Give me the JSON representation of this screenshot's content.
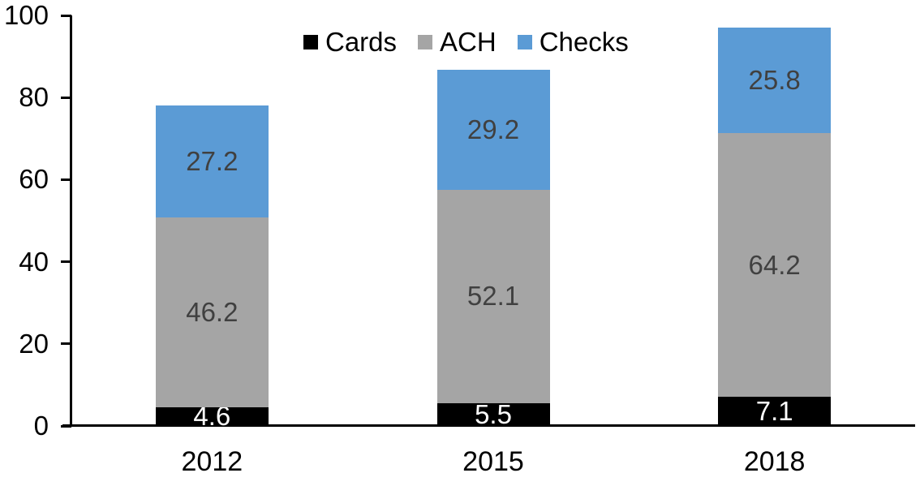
{
  "chart_data": {
    "type": "bar",
    "stacked": true,
    "title": "",
    "xlabel": "",
    "ylabel": "",
    "categories": [
      "2012",
      "2015",
      "2018"
    ],
    "series": [
      {
        "name": "Cards",
        "color": "#000000",
        "label_color": "#FFFFFF",
        "values": [
          4.6,
          5.5,
          7.1
        ]
      },
      {
        "name": "ACH",
        "color": "#A5A5A5",
        "label_color": "#404040",
        "values": [
          46.2,
          52.1,
          64.2
        ]
      },
      {
        "name": "Checks",
        "color": "#5B9BD5",
        "label_color": "#404040",
        "values": [
          27.2,
          29.2,
          25.8
        ]
      }
    ],
    "totals": [
      78.0,
      86.8,
      97.1
    ],
    "ylim": [
      0,
      100
    ],
    "yticks": [
      0,
      20,
      40,
      60,
      80,
      100
    ],
    "grid": false,
    "legend_position": "top-center",
    "axis_color": "#000000"
  }
}
